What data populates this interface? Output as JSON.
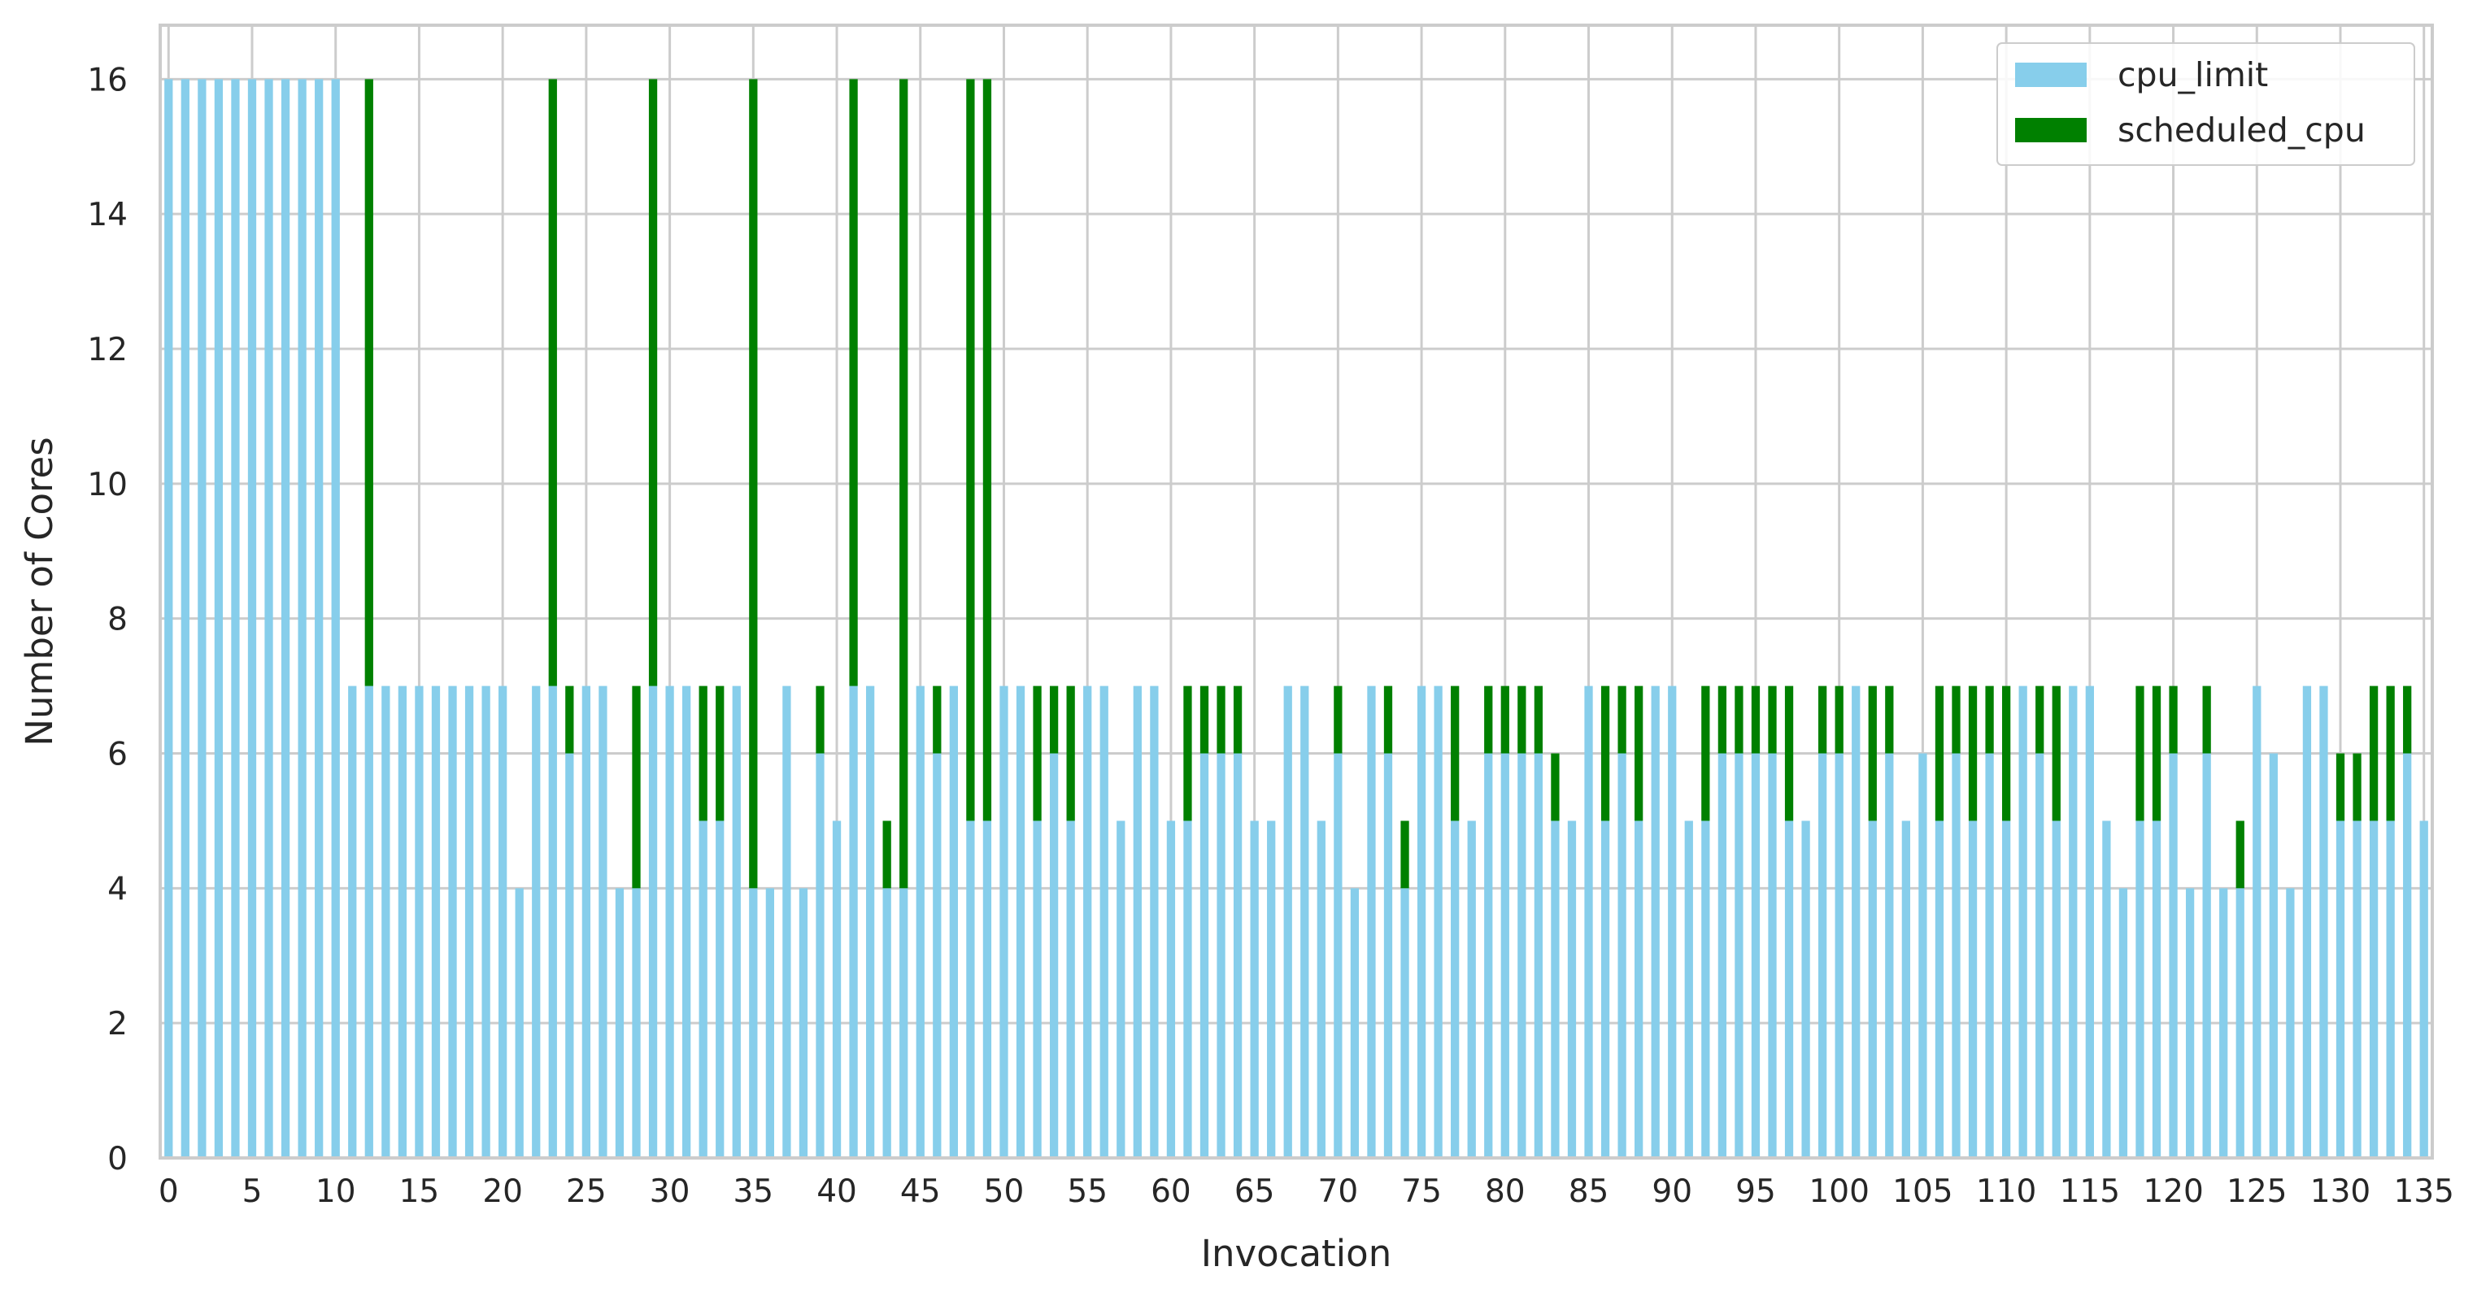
{
  "chart_data": {
    "type": "bar",
    "stacked": true,
    "xlabel": "Invocation",
    "ylabel": "Number of Cores",
    "xlim": [
      0,
      135
    ],
    "ylim": [
      0,
      16.8
    ],
    "x_ticks": [
      "0",
      "5",
      "10",
      "15",
      "20",
      "25",
      "30",
      "35",
      "40",
      "45",
      "50",
      "55",
      "60",
      "65",
      "70",
      "75",
      "80",
      "85",
      "90",
      "95",
      "100",
      "105",
      "110",
      "115",
      "120",
      "125",
      "130",
      "135"
    ],
    "y_ticks": [
      "0",
      "2",
      "4",
      "6",
      "8",
      "10",
      "12",
      "14",
      "16"
    ],
    "grid": true,
    "legend_position": "top-right",
    "categories": [
      0,
      1,
      2,
      3,
      4,
      5,
      6,
      7,
      8,
      9,
      10,
      11,
      12,
      13,
      14,
      15,
      16,
      17,
      18,
      19,
      20,
      21,
      22,
      23,
      24,
      25,
      26,
      27,
      28,
      29,
      30,
      31,
      32,
      33,
      34,
      35,
      36,
      37,
      38,
      39,
      40,
      41,
      42,
      43,
      44,
      45,
      46,
      47,
      48,
      49,
      50,
      51,
      52,
      53,
      54,
      55,
      56,
      57,
      58,
      59,
      60,
      61,
      62,
      63,
      64,
      65,
      66,
      67,
      68,
      69,
      70,
      71,
      72,
      73,
      74,
      75,
      76,
      77,
      78,
      79,
      80,
      81,
      82,
      83,
      84,
      85,
      86,
      87,
      88,
      89,
      90,
      91,
      92,
      93,
      94,
      95,
      96,
      97,
      98,
      99,
      100,
      101,
      102,
      103,
      104,
      105,
      106,
      107,
      108,
      109,
      110,
      111,
      112,
      113,
      114,
      115,
      116,
      117,
      118,
      119,
      120,
      121,
      122,
      123,
      124,
      125,
      126,
      127,
      128,
      129,
      130,
      131,
      132,
      133,
      134,
      135
    ],
    "series": [
      {
        "name": "cpu_limit",
        "color": "#87ceeb",
        "values": [
          16,
          16,
          16,
          16,
          16,
          16,
          16,
          16,
          16,
          16,
          16,
          7,
          7,
          7,
          7,
          7,
          7,
          7,
          7,
          7,
          7,
          4,
          7,
          7,
          6,
          7,
          7,
          4,
          4,
          7,
          7,
          7,
          5,
          5,
          7,
          4,
          4,
          7,
          4,
          6,
          5,
          7,
          7,
          4,
          4,
          7,
          6,
          7,
          5,
          5,
          7,
          7,
          5,
          6,
          5,
          7,
          7,
          5,
          7,
          7,
          5,
          5,
          6,
          6,
          6,
          5,
          5,
          7,
          7,
          5,
          6,
          4,
          7,
          6,
          4,
          7,
          7,
          5,
          5,
          6,
          6,
          6,
          6,
          5,
          5,
          7,
          5,
          6,
          5,
          7,
          7,
          5,
          5,
          6,
          6,
          6,
          6,
          5,
          5,
          6,
          6,
          7,
          5,
          6,
          5,
          6,
          5,
          6,
          5,
          6,
          5,
          7,
          6,
          5,
          7,
          7,
          5,
          4,
          5,
          5,
          6,
          4,
          6,
          4,
          4,
          7,
          6,
          4,
          7,
          7,
          5,
          5,
          5,
          5,
          6,
          5
        ]
      },
      {
        "name": "scheduled_cpu",
        "color": "#008000",
        "values": [
          0,
          0,
          0,
          0,
          0,
          0,
          0,
          0,
          0,
          0,
          0,
          0,
          9,
          0,
          0,
          0,
          0,
          0,
          0,
          0,
          0,
          0,
          0,
          9,
          1,
          0,
          0,
          0,
          3,
          9,
          0,
          0,
          2,
          2,
          0,
          12,
          0,
          0,
          0,
          1,
          0,
          9,
          0,
          1,
          12,
          0,
          1,
          0,
          11,
          11,
          0,
          0,
          2,
          1,
          2,
          0,
          0,
          0,
          0,
          0,
          0,
          2,
          1,
          1,
          1,
          0,
          0,
          0,
          0,
          0,
          1,
          0,
          0,
          1,
          1,
          0,
          0,
          2,
          0,
          1,
          1,
          1,
          1,
          1,
          0,
          0,
          2,
          1,
          2,
          0,
          0,
          0,
          2,
          1,
          1,
          1,
          1,
          2,
          0,
          1,
          1,
          0,
          2,
          1,
          0,
          0,
          2,
          1,
          2,
          1,
          2,
          0,
          1,
          2,
          0,
          0,
          0,
          0,
          2,
          2,
          1,
          0,
          1,
          0,
          1,
          0,
          0,
          0,
          0,
          0,
          1,
          1,
          2,
          2,
          1,
          0
        ]
      }
    ]
  }
}
